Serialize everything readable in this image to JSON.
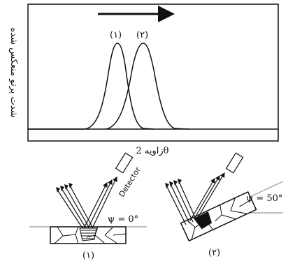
{
  "plot": {
    "ylabel": "شدت پرتو منعکس شده",
    "xlabel": "زاویه 2θ",
    "peak_labels": [
      "(۱)",
      "(۲)"
    ]
  },
  "bottom": {
    "detector_label": "Detector",
    "psi_left": "ψ = 0°",
    "psi_right": "ψ = 50°",
    "case_labels": [
      "(۱)",
      "(۲)"
    ]
  }
}
